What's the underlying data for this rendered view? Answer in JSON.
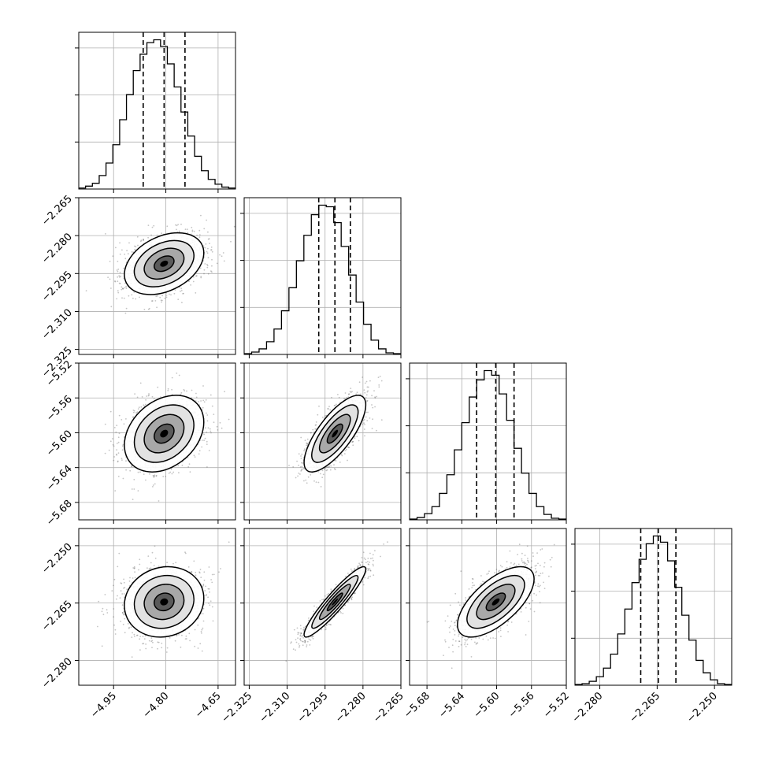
{
  "chart_data": {
    "type": "corner",
    "grid": true,
    "parameters": [
      {
        "range": [
          -5.05,
          -4.6
        ],
        "ticks": [
          -4.95,
          -4.8,
          -4.65
        ],
        "tick_labels": [
          "−4.95",
          "−4.80",
          "−4.65"
        ],
        "median": -4.805,
        "q16": -4.865,
        "q84": -4.745,
        "sigma": 0.057
      },
      {
        "range": [
          -2.327,
          -2.265
        ],
        "ticks": [
          -2.325,
          -2.31,
          -2.295,
          -2.28,
          -2.265
        ],
        "tick_labels": [
          "−2.325",
          "−2.310",
          "−2.295",
          "−2.280",
          "−2.265"
        ],
        "median": -2.2911,
        "q16": -2.2975,
        "q84": -2.285,
        "sigma": 0.0061
      },
      {
        "range": [
          -5.7,
          -5.52
        ],
        "ticks": [
          -5.68,
          -5.64,
          -5.6,
          -5.56,
          -5.52
        ],
        "tick_labels": [
          "−5.68",
          "−5.64",
          "−5.60",
          "−5.56",
          "−5.52"
        ],
        "median": -5.601,
        "q16": -5.623,
        "q84": -5.58,
        "sigma": 0.022
      },
      {
        "range": [
          -2.2865,
          -2.2455
        ],
        "ticks": [
          -2.28,
          -2.265,
          -2.25
        ],
        "tick_labels": [
          "−2.280",
          "−2.265",
          "−2.250"
        ],
        "median": -2.2647,
        "q16": -2.2693,
        "q84": -2.2601,
        "sigma": 0.0046
      }
    ],
    "correlations": {
      "1-0": 0.35,
      "2-0": 0.3,
      "2-1": 0.75,
      "3-0": 0.1,
      "3-1": 0.93,
      "3-2": 0.65
    },
    "histograms": {
      "0": [
        1,
        3,
        6,
        14,
        27,
        46,
        72,
        98,
        123,
        140,
        152,
        155,
        148,
        130,
        106,
        80,
        55,
        34,
        19,
        10,
        5,
        2,
        1
      ],
      "1": [
        1,
        3,
        7,
        16,
        32,
        55,
        84,
        118,
        150,
        176,
        188,
        186,
        166,
        136,
        100,
        66,
        38,
        18,
        7,
        2,
        1
      ],
      "2": [
        1,
        3,
        8,
        17,
        34,
        58,
        90,
        125,
        158,
        180,
        192,
        186,
        162,
        128,
        92,
        60,
        34,
        17,
        7,
        2,
        1
      ],
      "3": [
        1,
        2,
        5,
        11,
        22,
        40,
        66,
        98,
        132,
        162,
        182,
        192,
        184,
        160,
        126,
        90,
        58,
        32,
        16,
        7,
        2,
        1
      ]
    }
  }
}
